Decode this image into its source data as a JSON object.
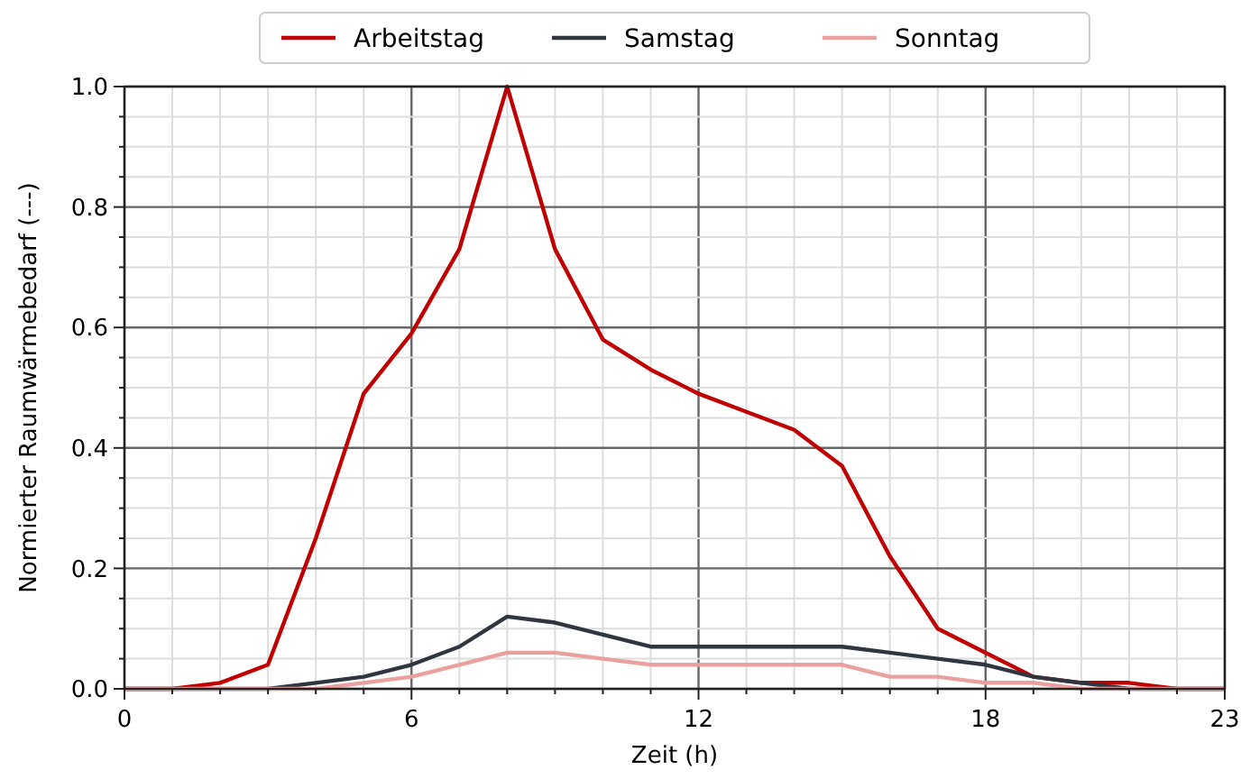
{
  "chart_data": {
    "type": "line",
    "xlabel": "Zeit (h)",
    "ylabel": "Normierter Raumwärmebedarf (---)",
    "x": [
      0,
      1,
      2,
      3,
      4,
      5,
      6,
      7,
      8,
      9,
      10,
      11,
      12,
      13,
      14,
      15,
      16,
      17,
      18,
      19,
      20,
      21,
      22,
      23
    ],
    "series": [
      {
        "name": "Arbeitstag",
        "color": "#c00000",
        "values": [
          0,
          0,
          0.01,
          0.04,
          0.25,
          0.49,
          0.59,
          0.73,
          1.0,
          0.73,
          0.58,
          0.53,
          0.49,
          0.46,
          0.43,
          0.37,
          0.22,
          0.1,
          0.06,
          0.02,
          0.01,
          0.01,
          0,
          0
        ]
      },
      {
        "name": "Samstag",
        "color": "#2f3640",
        "values": [
          0,
          0,
          0,
          0,
          0.01,
          0.02,
          0.04,
          0.07,
          0.12,
          0.11,
          0.09,
          0.07,
          0.07,
          0.07,
          0.07,
          0.07,
          0.06,
          0.05,
          0.04,
          0.02,
          0.01,
          0,
          0,
          0
        ]
      },
      {
        "name": "Sonntag",
        "color": "#eba0a0",
        "values": [
          0,
          0,
          0,
          0,
          0,
          0.01,
          0.02,
          0.04,
          0.06,
          0.06,
          0.05,
          0.04,
          0.04,
          0.04,
          0.04,
          0.04,
          0.02,
          0.02,
          0.01,
          0.01,
          0,
          0,
          0,
          0
        ]
      }
    ],
    "xlim": [
      0,
      23
    ],
    "xticks": [
      0,
      {
        "value": 1,
        "label": null
      },
      {
        "value": 2,
        "label": null
      },
      {
        "value": 3,
        "label": null
      },
      {
        "value": 4,
        "label": null
      },
      {
        "value": 5,
        "label": null
      },
      6,
      {
        "value": 7,
        "label": null
      },
      {
        "value": 8,
        "label": null
      },
      {
        "value": 9,
        "label": null
      },
      {
        "value": 10,
        "label": null
      },
      {
        "value": 11,
        "label": null
      },
      12,
      {
        "value": 13,
        "label": null
      },
      {
        "value": 14,
        "label": null
      },
      {
        "value": 15,
        "label": null
      },
      {
        "value": 16,
        "label": null
      },
      {
        "value": 17,
        "label": null
      },
      18,
      {
        "value": 19,
        "label": null
      },
      {
        "value": 20,
        "label": null
      },
      {
        "value": 21,
        "label": null
      },
      {
        "value": 22,
        "label": null
      },
      23
    ],
    "ylim": [
      0,
      1
    ],
    "yticks": [
      {
        "value": 0,
        "label": "0.0"
      },
      {
        "value": 0.05,
        "label": null
      },
      {
        "value": 0.1,
        "label": null
      },
      {
        "value": 0.15,
        "label": null
      },
      {
        "value": 0.2,
        "label": "0.2"
      },
      {
        "value": 0.25,
        "label": null
      },
      {
        "value": 0.3,
        "label": null
      },
      {
        "value": 0.35,
        "label": null
      },
      {
        "value": 0.4,
        "label": "0.4"
      },
      {
        "value": 0.45,
        "label": null
      },
      {
        "value": 0.5,
        "label": null
      },
      {
        "value": 0.55,
        "label": null
      },
      {
        "value": 0.6,
        "label": "0.6"
      },
      {
        "value": 0.65,
        "label": null
      },
      {
        "value": 0.7,
        "label": null
      },
      {
        "value": 0.75,
        "label": null
      },
      {
        "value": 0.8,
        "label": "0.8"
      },
      {
        "value": 0.85,
        "label": null
      },
      {
        "value": 0.9,
        "label": null
      },
      {
        "value": 0.95,
        "label": null
      },
      {
        "value": 1,
        "label": "1.0"
      }
    ],
    "grid": true,
    "legend": "top",
    "line_style": "solid",
    "marker": "none"
  }
}
